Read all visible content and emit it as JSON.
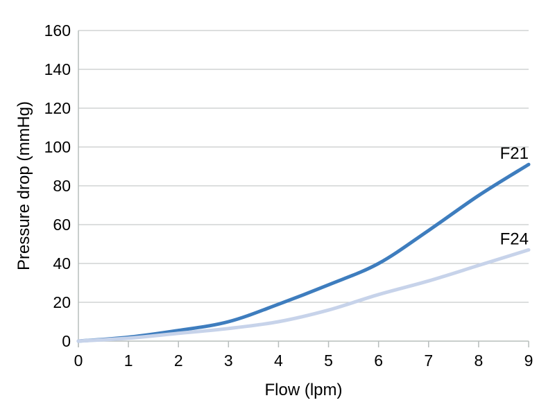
{
  "chart_data": {
    "type": "line",
    "title": "",
    "xlabel": "Flow (lpm)",
    "ylabel": "Pressure drop (mmHg)",
    "x": [
      0,
      1,
      2,
      3,
      4,
      5,
      6,
      7,
      8,
      9
    ],
    "xlim": [
      0,
      9
    ],
    "ylim": [
      0,
      160
    ],
    "x_ticks": [
      0,
      1,
      2,
      3,
      4,
      5,
      6,
      7,
      8,
      9
    ],
    "y_ticks": [
      0,
      20,
      40,
      60,
      80,
      100,
      120,
      140,
      160
    ],
    "grid": "horizontal-only",
    "legend_position": "inline-end-of-line",
    "series": [
      {
        "name": "F21",
        "color": "#3e7dbe",
        "values": [
          0,
          2,
          5.5,
          10,
          19,
          29,
          40,
          57,
          75,
          91
        ]
      },
      {
        "name": "F24",
        "color": "#c7d3ea",
        "values": [
          0,
          1.5,
          4,
          6.5,
          10,
          16,
          24,
          31,
          39,
          47
        ]
      }
    ],
    "colors": {
      "grid": "#c6cbca",
      "axis": "#b7bdbc",
      "text": "#000000",
      "background": "#ffffff"
    }
  }
}
